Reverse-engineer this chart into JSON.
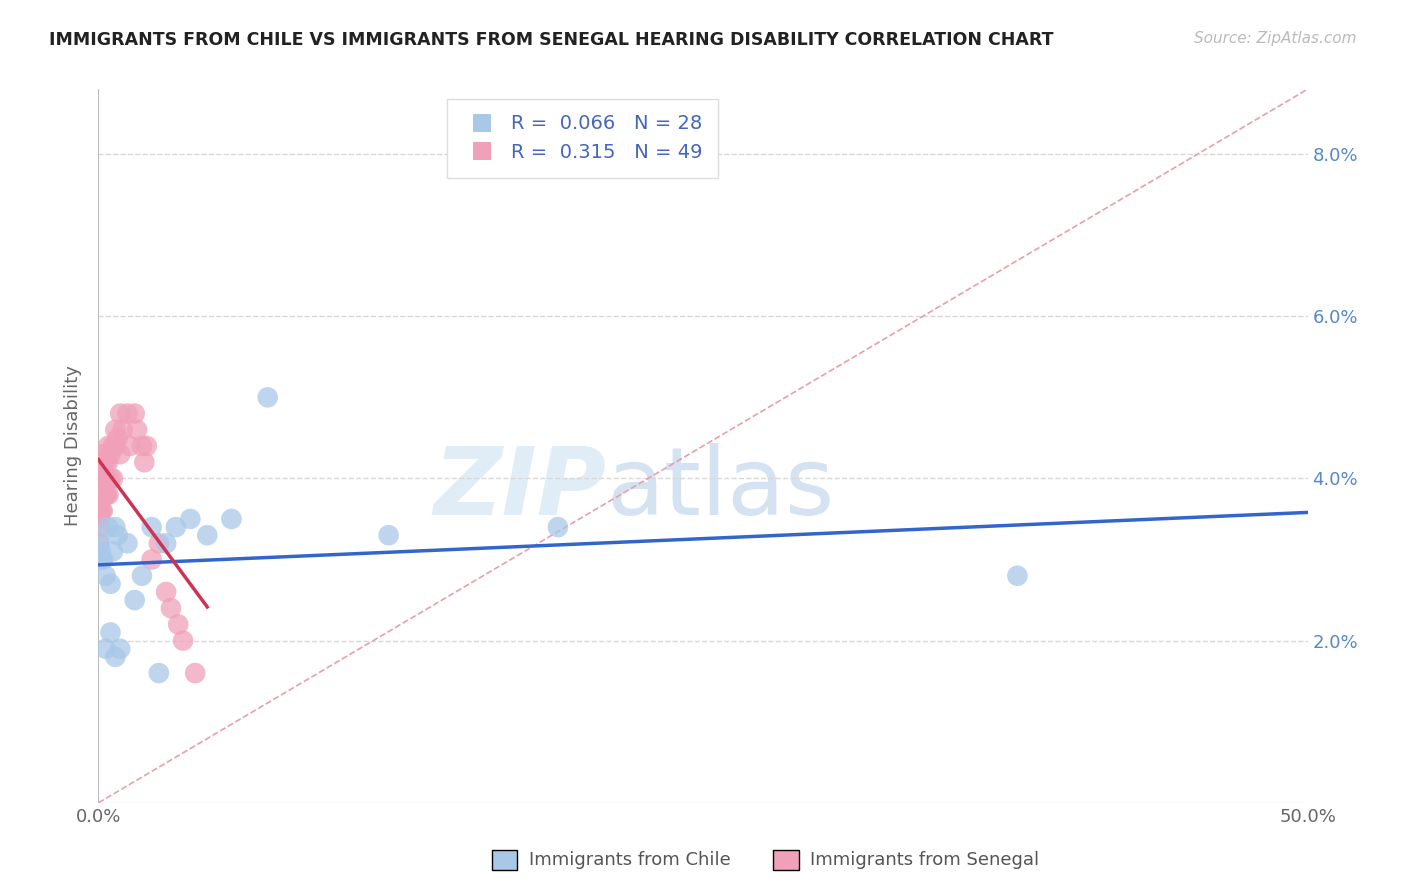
{
  "title": "IMMIGRANTS FROM CHILE VS IMMIGRANTS FROM SENEGAL HEARING DISABILITY CORRELATION CHART",
  "source": "Source: ZipAtlas.com",
  "ylabel": "Hearing Disability",
  "xlim": [
    0.0,
    0.5
  ],
  "ylim": [
    0.0,
    0.088
  ],
  "yticks": [
    0.02,
    0.04,
    0.06,
    0.08
  ],
  "ytick_labels": [
    "2.0%",
    "4.0%",
    "6.0%",
    "8.0%"
  ],
  "xticks": [
    0.0,
    0.1,
    0.2,
    0.3,
    0.4,
    0.5
  ],
  "xtick_labels": [
    "0.0%",
    "",
    "",
    "",
    "",
    "50.0%"
  ],
  "legend_chile_R": "0.066",
  "legend_chile_N": "28",
  "legend_senegal_R": "0.315",
  "legend_senegal_N": "49",
  "chile_color": "#a8c8e8",
  "senegal_color": "#f0a0b8",
  "chile_line_color": "#3366cc",
  "senegal_line_color": "#cc3355",
  "dashed_line_color": "#e8a0a8",
  "watermark_zip": "ZIP",
  "watermark_atlas": "atlas",
  "chile_points_x": [
    0.0005,
    0.001,
    0.0015,
    0.002,
    0.003,
    0.004,
    0.005,
    0.006,
    0.007,
    0.008,
    0.012,
    0.015,
    0.018,
    0.022,
    0.028,
    0.032,
    0.038,
    0.045,
    0.055,
    0.07,
    0.12,
    0.19,
    0.38,
    0.003,
    0.005,
    0.007,
    0.009,
    0.025
  ],
  "chile_points_y": [
    0.032,
    0.031,
    0.03,
    0.03,
    0.028,
    0.034,
    0.027,
    0.031,
    0.034,
    0.033,
    0.032,
    0.025,
    0.028,
    0.034,
    0.032,
    0.034,
    0.035,
    0.033,
    0.035,
    0.05,
    0.033,
    0.034,
    0.028,
    0.019,
    0.021,
    0.018,
    0.019,
    0.016
  ],
  "senegal_points_x": [
    0.0002,
    0.0003,
    0.0005,
    0.0005,
    0.0007,
    0.001,
    0.001,
    0.0012,
    0.0013,
    0.0015,
    0.0015,
    0.0018,
    0.002,
    0.002,
    0.0022,
    0.0022,
    0.0025,
    0.0025,
    0.003,
    0.003,
    0.0032,
    0.0035,
    0.004,
    0.004,
    0.0042,
    0.005,
    0.005,
    0.006,
    0.006,
    0.007,
    0.007,
    0.008,
    0.009,
    0.009,
    0.01,
    0.012,
    0.013,
    0.015,
    0.016,
    0.018,
    0.019,
    0.02,
    0.022,
    0.025,
    0.028,
    0.03,
    0.033,
    0.035,
    0.04
  ],
  "senegal_points_y": [
    0.032,
    0.035,
    0.038,
    0.04,
    0.036,
    0.038,
    0.034,
    0.04,
    0.036,
    0.042,
    0.038,
    0.036,
    0.04,
    0.042,
    0.038,
    0.043,
    0.038,
    0.04,
    0.042,
    0.038,
    0.04,
    0.038,
    0.042,
    0.044,
    0.038,
    0.043,
    0.04,
    0.044,
    0.04,
    0.044,
    0.046,
    0.045,
    0.043,
    0.048,
    0.046,
    0.048,
    0.044,
    0.048,
    0.046,
    0.044,
    0.042,
    0.044,
    0.03,
    0.032,
    0.026,
    0.024,
    0.022,
    0.02,
    0.016
  ]
}
